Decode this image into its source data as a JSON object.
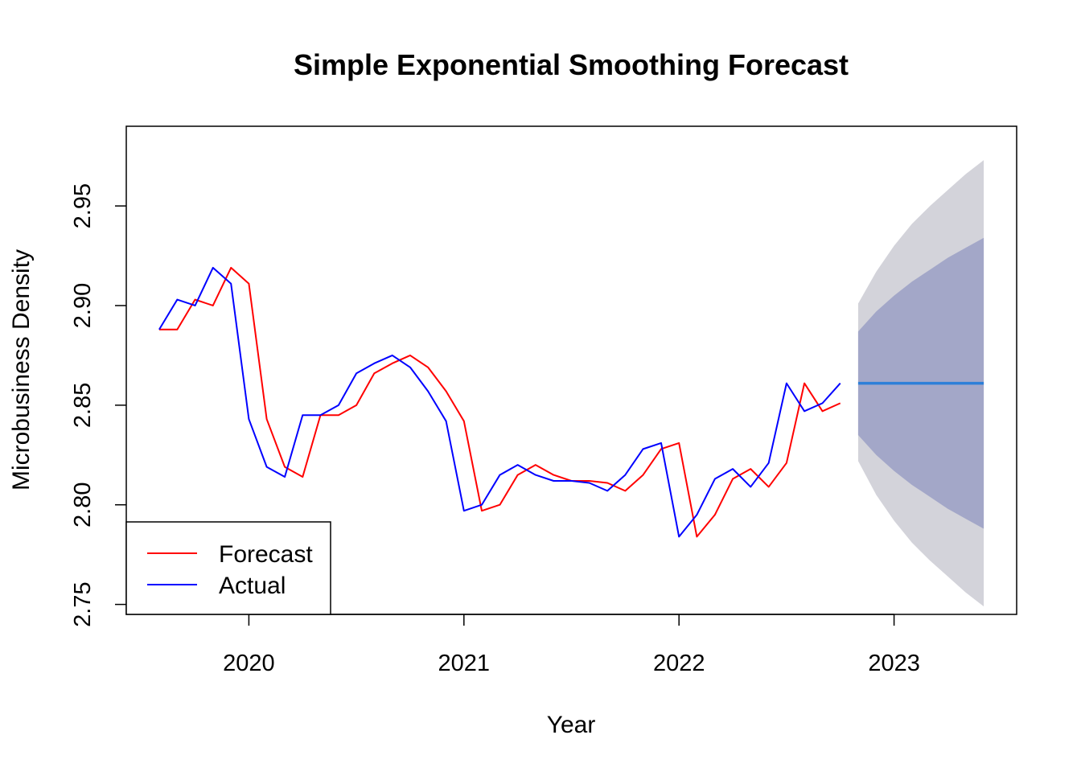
{
  "chart_data": {
    "type": "line",
    "title": "Simple Exponential Smoothing Forecast",
    "xlabel": "Year",
    "ylabel": "Microbusiness Density",
    "xlim": [
      2019.43,
      2023.57
    ],
    "ylim": [
      2.745,
      2.99
    ],
    "x_ticks": [
      2020,
      2021,
      2022,
      2023
    ],
    "x_tick_labels": [
      "2020",
      "2021",
      "2022",
      "2023"
    ],
    "y_ticks": [
      2.75,
      2.8,
      2.85,
      2.9,
      2.95
    ],
    "y_tick_labels": [
      "2.75",
      "2.80",
      "2.85",
      "2.90",
      "2.95"
    ],
    "legend": {
      "position": "bottom-left",
      "entries": [
        {
          "label": "Forecast",
          "color": "#ff0000"
        },
        {
          "label": "Actual",
          "color": "#0000ff"
        }
      ]
    },
    "series": [
      {
        "name": "Forecast",
        "color": "#ff0000",
        "x": [
          2019.583,
          2019.667,
          2019.75,
          2019.833,
          2019.917,
          2020.0,
          2020.083,
          2020.167,
          2020.25,
          2020.333,
          2020.417,
          2020.5,
          2020.583,
          2020.667,
          2020.75,
          2020.833,
          2020.917,
          2021.0,
          2021.083,
          2021.167,
          2021.25,
          2021.333,
          2021.417,
          2021.5,
          2021.583,
          2021.667,
          2021.75,
          2021.833,
          2021.917,
          2022.0,
          2022.083,
          2022.167,
          2022.25,
          2022.333,
          2022.417,
          2022.5,
          2022.583,
          2022.667,
          2022.75
        ],
        "y": [
          2.888,
          2.888,
          2.903,
          2.9,
          2.919,
          2.911,
          2.843,
          2.819,
          2.814,
          2.845,
          2.845,
          2.85,
          2.866,
          2.871,
          2.875,
          2.869,
          2.857,
          2.842,
          2.797,
          2.8,
          2.815,
          2.82,
          2.815,
          2.812,
          2.812,
          2.811,
          2.807,
          2.815,
          2.828,
          2.831,
          2.784,
          2.795,
          2.813,
          2.818,
          2.809,
          2.821,
          2.861,
          2.847,
          2.851
        ]
      },
      {
        "name": "Actual",
        "color": "#0000ff",
        "x": [
          2019.583,
          2019.667,
          2019.75,
          2019.833,
          2019.917,
          2020.0,
          2020.083,
          2020.167,
          2020.25,
          2020.333,
          2020.417,
          2020.5,
          2020.583,
          2020.667,
          2020.75,
          2020.833,
          2020.917,
          2021.0,
          2021.083,
          2021.167,
          2021.25,
          2021.333,
          2021.417,
          2021.5,
          2021.583,
          2021.667,
          2021.75,
          2021.833,
          2021.917,
          2022.0,
          2022.083,
          2022.167,
          2022.25,
          2022.333,
          2022.417,
          2022.5,
          2022.583,
          2022.667,
          2022.75
        ],
        "y": [
          2.888,
          2.903,
          2.9,
          2.919,
          2.911,
          2.843,
          2.819,
          2.814,
          2.845,
          2.845,
          2.85,
          2.866,
          2.871,
          2.875,
          2.869,
          2.857,
          2.842,
          2.797,
          2.8,
          2.815,
          2.82,
          2.815,
          2.812,
          2.812,
          2.811,
          2.807,
          2.815,
          2.828,
          2.831,
          2.784,
          2.795,
          2.813,
          2.818,
          2.809,
          2.821,
          2.861,
          2.847,
          2.851,
          2.861
        ]
      },
      {
        "name": "Point forecast",
        "color": "#2d7fd8",
        "x": [
          2022.833,
          2023.417
        ],
        "y": [
          2.861,
          2.861
        ]
      }
    ],
    "forecast_bands": {
      "x": [
        2022.833,
        2022.917,
        2023.0,
        2023.083,
        2023.167,
        2023.25,
        2023.333,
        2023.417
      ],
      "lower_95": [
        2.822,
        2.805,
        2.792,
        2.781,
        2.772,
        2.764,
        2.756,
        2.749
      ],
      "upper_95": [
        2.901,
        2.917,
        2.93,
        2.941,
        2.95,
        2.958,
        2.966,
        2.973
      ],
      "lower_80": [
        2.835,
        2.825,
        2.817,
        2.81,
        2.804,
        2.798,
        2.793,
        2.788
      ],
      "upper_80": [
        2.887,
        2.897,
        2.905,
        2.912,
        2.918,
        2.924,
        2.929,
        2.934
      ],
      "color_95": "#d3d3da",
      "color_80": "#a3a7c8"
    }
  }
}
